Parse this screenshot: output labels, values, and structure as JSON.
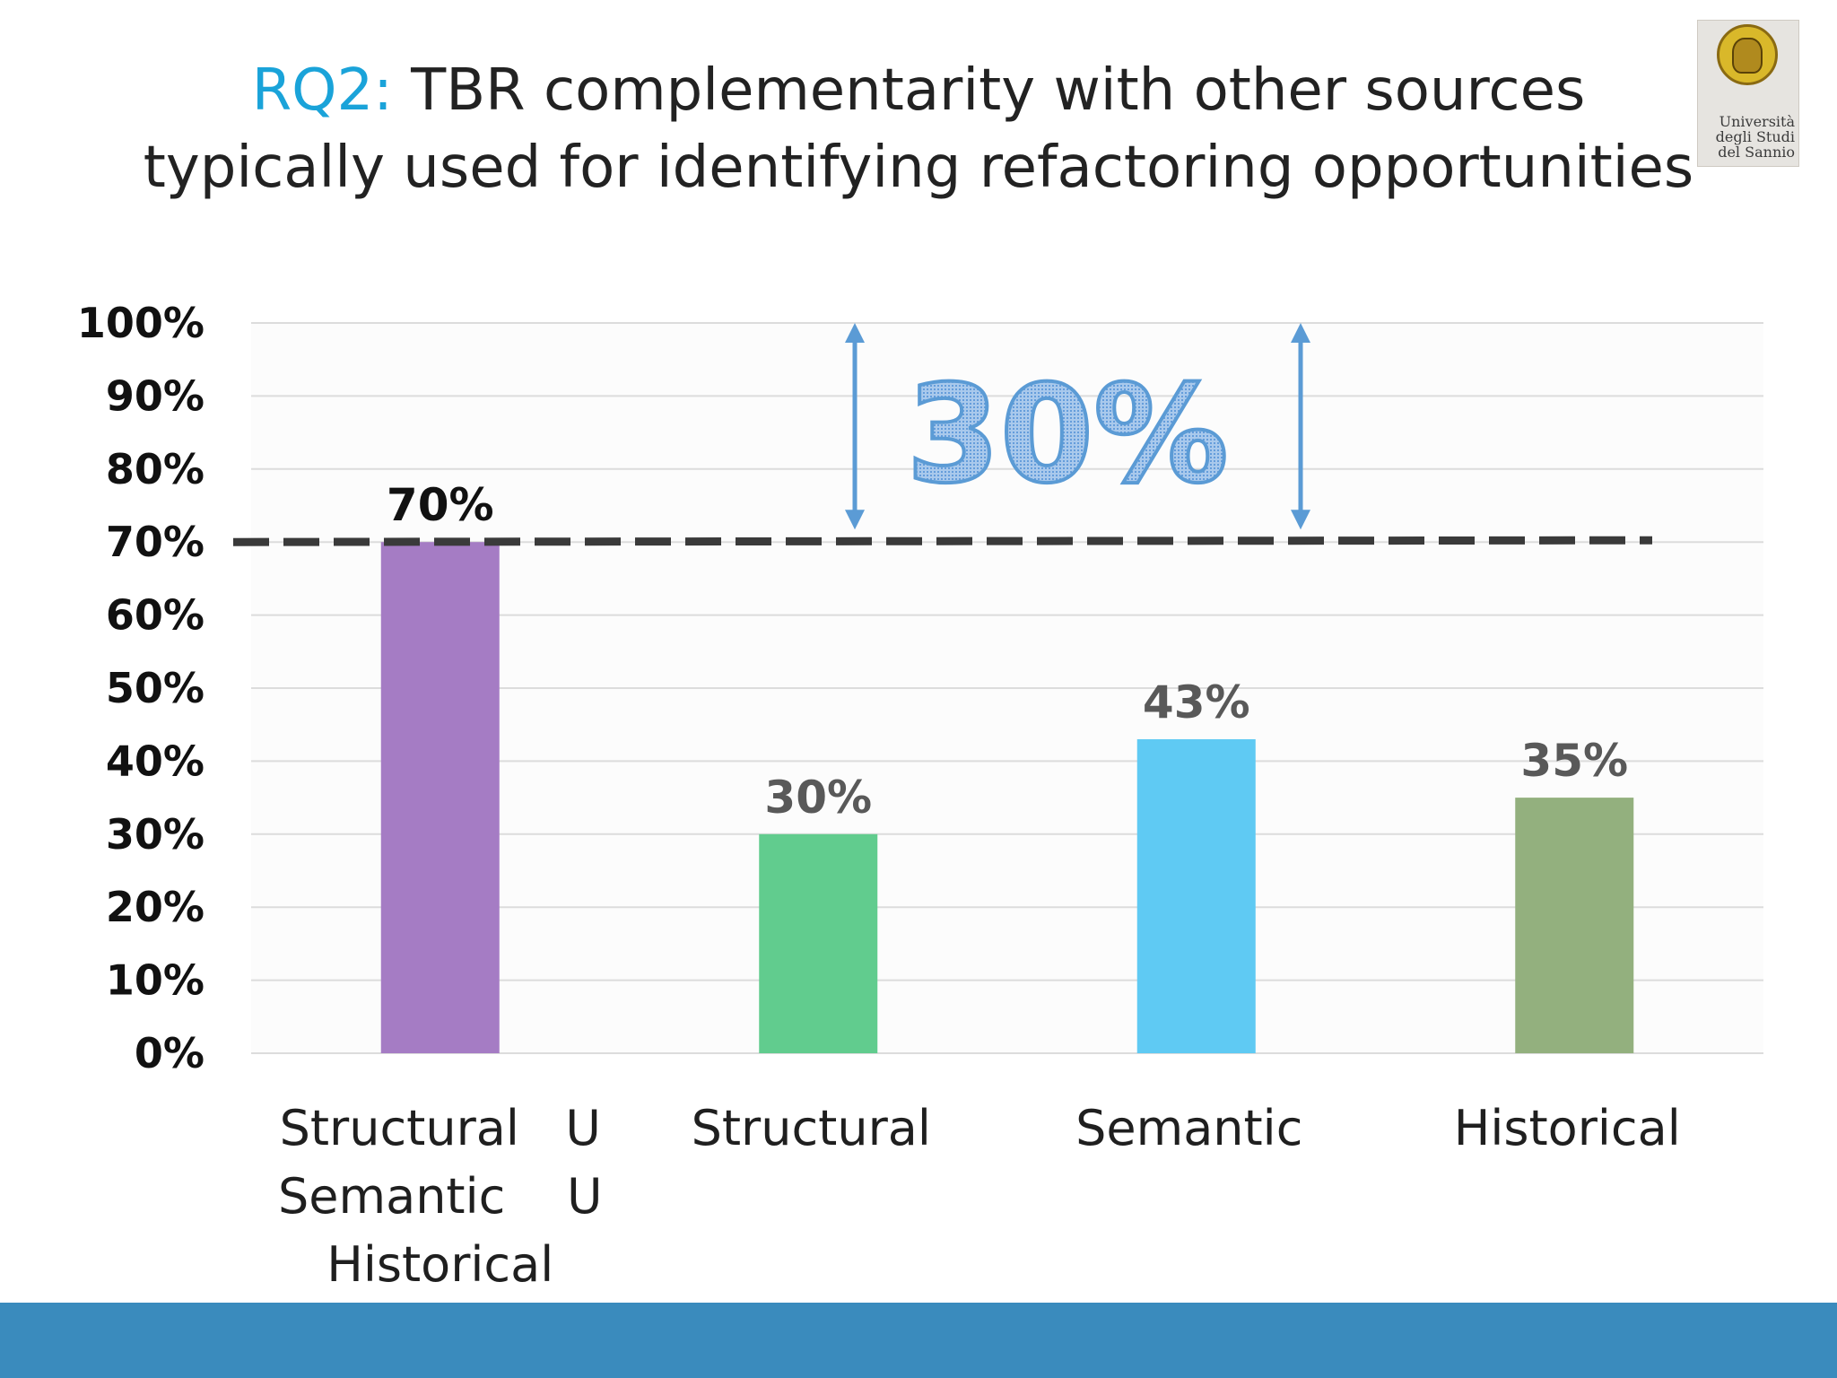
{
  "slide": {
    "title_prefix": "RQ2:",
    "title_line1": "TBR complementarity with other sources",
    "title_line2": "typically used for identifying refactoring opportunities",
    "logo_text": [
      "Università",
      "degli Studi",
      "del Sannio"
    ]
  },
  "colors": {
    "title_accent": "#1aa3d9",
    "footer": "#3a8bbd",
    "bar_structural_union": "#a57cc4",
    "bar_structural": "#61cc8e",
    "bar_semantic": "#5fcaf3",
    "bar_historical": "#93b07e",
    "annotation": "#5b9bd5"
  },
  "chart_data": {
    "type": "bar",
    "categories": [
      [
        "Structural",
        "U",
        "Semantic",
        "U",
        "Historical"
      ],
      [
        "Structural"
      ],
      [
        "Semantic"
      ],
      [
        "Historical"
      ]
    ],
    "values": [
      70,
      30,
      43,
      35
    ],
    "data_labels": [
      "70%",
      "30%",
      "43%",
      "35%"
    ],
    "ylim": [
      0,
      100
    ],
    "yticks": [
      "0%",
      "10%",
      "20%",
      "30%",
      "40%",
      "50%",
      "60%",
      "70%",
      "80%",
      "90%",
      "100%"
    ],
    "grid": true,
    "reference_line": {
      "value": 70,
      "style": "dashed"
    },
    "gap_annotation": {
      "label": "30%",
      "from": 70,
      "to": 100
    }
  }
}
